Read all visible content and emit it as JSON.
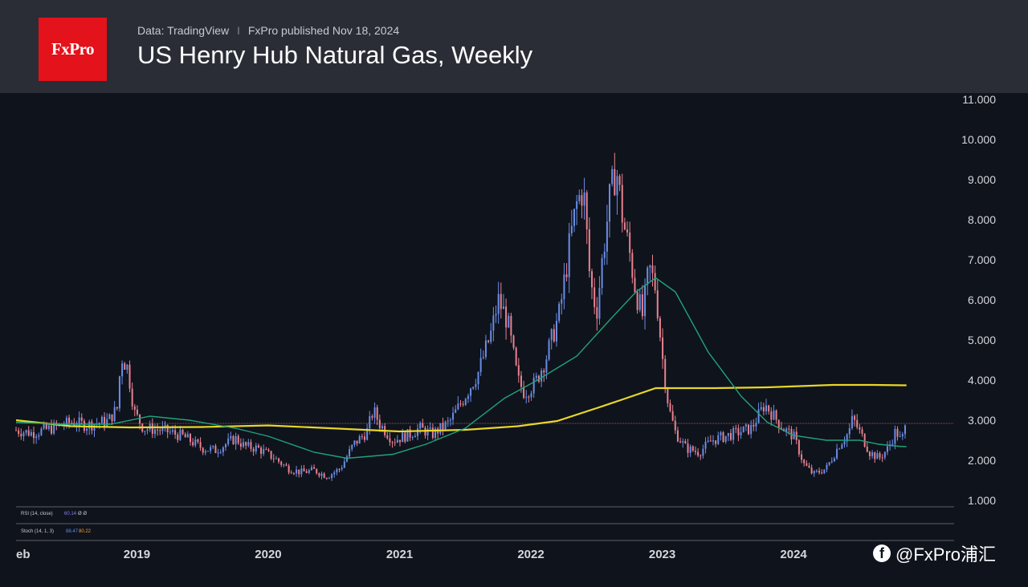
{
  "header": {
    "logo_text": "FxPro",
    "data_source": "Data: TradingView",
    "separator": "I",
    "published": "FxPro published Nov 18, 2024",
    "title": "US Henry Hub Natural Gas, Weekly"
  },
  "indicators": {
    "rsi_label": "RSI (14, close)",
    "rsi_value": "60.14",
    "rsi_extra": "Ø Ø",
    "stoch_label": "Stoch (14, 1, 3)",
    "stoch_k": "88.47",
    "stoch_d": "80.22"
  },
  "watermark": {
    "icon": "facebook-icon",
    "text": "@FxPro浦汇"
  },
  "colors": {
    "background": "#0f131c",
    "header_bg": "#2a2d35",
    "logo_red": "#e3121b",
    "candle_up": "#6a8ee6",
    "candle_down": "#e8828f",
    "ma_long": "#e8d62a",
    "ma_short": "#1fa37c",
    "current_price_line": "#e8828f"
  },
  "chart_data": {
    "type": "candlestick",
    "title": "US Henry Hub Natural Gas, Weekly",
    "xlabel": "",
    "ylabel": "",
    "ylim": [
      1.0,
      11.0
    ],
    "yticks": [
      "11.000",
      "10.000",
      "9.000",
      "8.000",
      "7.000",
      "6.000",
      "5.000",
      "4.000",
      "3.000",
      "2.000",
      "1.000"
    ],
    "xticks": [
      {
        "label": "eb",
        "year": 2018.08
      },
      {
        "label": "2019",
        "year": 2019.0
      },
      {
        "label": "2020",
        "year": 2020.0
      },
      {
        "label": "2021",
        "year": 2021.0
      },
      {
        "label": "2022",
        "year": 2022.0
      },
      {
        "label": "2023",
        "year": 2023.0
      },
      {
        "label": "2024",
        "year": 2024.0
      }
    ],
    "xlim": [
      2018.08,
      2024.88
    ],
    "current_price": 2.92,
    "price_path": [
      [
        2018.08,
        2.75
      ],
      [
        2018.2,
        2.68
      ],
      [
        2018.35,
        2.8
      ],
      [
        2018.5,
        2.95
      ],
      [
        2018.62,
        2.88
      ],
      [
        2018.78,
        2.98
      ],
      [
        2018.85,
        3.3
      ],
      [
        2018.88,
        4.6
      ],
      [
        2018.93,
        4.3
      ],
      [
        2018.98,
        3.2
      ],
      [
        2019.05,
        2.8
      ],
      [
        2019.2,
        2.75
      ],
      [
        2019.35,
        2.6
      ],
      [
        2019.5,
        2.3
      ],
      [
        2019.6,
        2.25
      ],
      [
        2019.75,
        2.55
      ],
      [
        2019.82,
        2.35
      ],
      [
        2019.92,
        2.3
      ],
      [
        2020.05,
        2.05
      ],
      [
        2020.15,
        1.8
      ],
      [
        2020.25,
        1.7
      ],
      [
        2020.35,
        1.75
      ],
      [
        2020.45,
        1.6
      ],
      [
        2020.55,
        1.8
      ],
      [
        2020.65,
        2.4
      ],
      [
        2020.75,
        2.7
      ],
      [
        2020.8,
        3.25
      ],
      [
        2020.85,
        2.9
      ],
      [
        2020.95,
        2.5
      ],
      [
        2021.08,
        2.65
      ],
      [
        2021.15,
        2.8
      ],
      [
        2021.25,
        2.65
      ],
      [
        2021.38,
        2.95
      ],
      [
        2021.48,
        3.5
      ],
      [
        2021.6,
        4.2
      ],
      [
        2021.7,
        5.2
      ],
      [
        2021.75,
        6.0
      ],
      [
        2021.82,
        5.5
      ],
      [
        2021.9,
        4.0
      ],
      [
        2021.95,
        3.7
      ],
      [
        2022.03,
        3.9
      ],
      [
        2022.12,
        4.6
      ],
      [
        2022.22,
        5.7
      ],
      [
        2022.3,
        7.5
      ],
      [
        2022.35,
        8.4
      ],
      [
        2022.4,
        8.8
      ],
      [
        2022.45,
        6.5
      ],
      [
        2022.5,
        5.7
      ],
      [
        2022.55,
        7.2
      ],
      [
        2022.6,
        8.5
      ],
      [
        2022.65,
        9.3
      ],
      [
        2022.7,
        8.0
      ],
      [
        2022.75,
        7.2
      ],
      [
        2022.8,
        6.2
      ],
      [
        2022.85,
        5.6
      ],
      [
        2022.9,
        6.8
      ],
      [
        2022.95,
        6.3
      ],
      [
        2023.0,
        4.6
      ],
      [
        2023.05,
        3.3
      ],
      [
        2023.1,
        2.7
      ],
      [
        2023.18,
        2.3
      ],
      [
        2023.28,
        2.2
      ],
      [
        2023.38,
        2.5
      ],
      [
        2023.48,
        2.6
      ],
      [
        2023.58,
        2.7
      ],
      [
        2023.68,
        2.8
      ],
      [
        2023.78,
        3.4
      ],
      [
        2023.85,
        3.1
      ],
      [
        2023.92,
        2.8
      ],
      [
        2024.0,
        2.6
      ],
      [
        2024.08,
        1.9
      ],
      [
        2024.15,
        1.65
      ],
      [
        2024.25,
        1.8
      ],
      [
        2024.35,
        2.4
      ],
      [
        2024.42,
        2.7
      ],
      [
        2024.45,
        3.05
      ],
      [
        2024.52,
        2.6
      ],
      [
        2024.58,
        2.2
      ],
      [
        2024.65,
        2.05
      ],
      [
        2024.72,
        2.3
      ],
      [
        2024.78,
        2.75
      ],
      [
        2024.82,
        2.45
      ],
      [
        2024.86,
        2.92
      ]
    ],
    "series": [
      {
        "name": "",
        "color": "#e8d62a",
        "points": [
          [
            2018.08,
            3.0
          ],
          [
            2018.5,
            2.85
          ],
          [
            2018.95,
            2.82
          ],
          [
            2019.5,
            2.83
          ],
          [
            2020.0,
            2.87
          ],
          [
            2020.6,
            2.78
          ],
          [
            2021.0,
            2.72
          ],
          [
            2021.5,
            2.76
          ],
          [
            2021.9,
            2.85
          ],
          [
            2022.2,
            2.98
          ],
          [
            2022.5,
            3.3
          ],
          [
            2022.7,
            3.52
          ],
          [
            2022.95,
            3.8
          ],
          [
            2023.4,
            3.8
          ],
          [
            2023.8,
            3.82
          ],
          [
            2024.3,
            3.88
          ],
          [
            2024.6,
            3.88
          ],
          [
            2024.86,
            3.87
          ]
        ]
      },
      {
        "name": "",
        "color": "#1fa37c",
        "points": [
          [
            2018.08,
            2.95
          ],
          [
            2018.4,
            2.9
          ],
          [
            2018.8,
            2.9
          ],
          [
            2019.1,
            3.1
          ],
          [
            2019.4,
            3.0
          ],
          [
            2019.75,
            2.8
          ],
          [
            2020.0,
            2.6
          ],
          [
            2020.35,
            2.2
          ],
          [
            2020.6,
            2.05
          ],
          [
            2020.95,
            2.15
          ],
          [
            2021.2,
            2.4
          ],
          [
            2021.5,
            2.8
          ],
          [
            2021.8,
            3.55
          ],
          [
            2022.05,
            4.0
          ],
          [
            2022.35,
            4.6
          ],
          [
            2022.6,
            5.5
          ],
          [
            2022.8,
            6.2
          ],
          [
            2022.95,
            6.55
          ],
          [
            2023.1,
            6.2
          ],
          [
            2023.35,
            4.7
          ],
          [
            2023.6,
            3.6
          ],
          [
            2023.8,
            2.95
          ],
          [
            2024.0,
            2.62
          ],
          [
            2024.25,
            2.5
          ],
          [
            2024.5,
            2.5
          ],
          [
            2024.65,
            2.4
          ],
          [
            2024.8,
            2.35
          ],
          [
            2024.86,
            2.34
          ]
        ]
      }
    ],
    "grid": false,
    "legend": "none"
  }
}
